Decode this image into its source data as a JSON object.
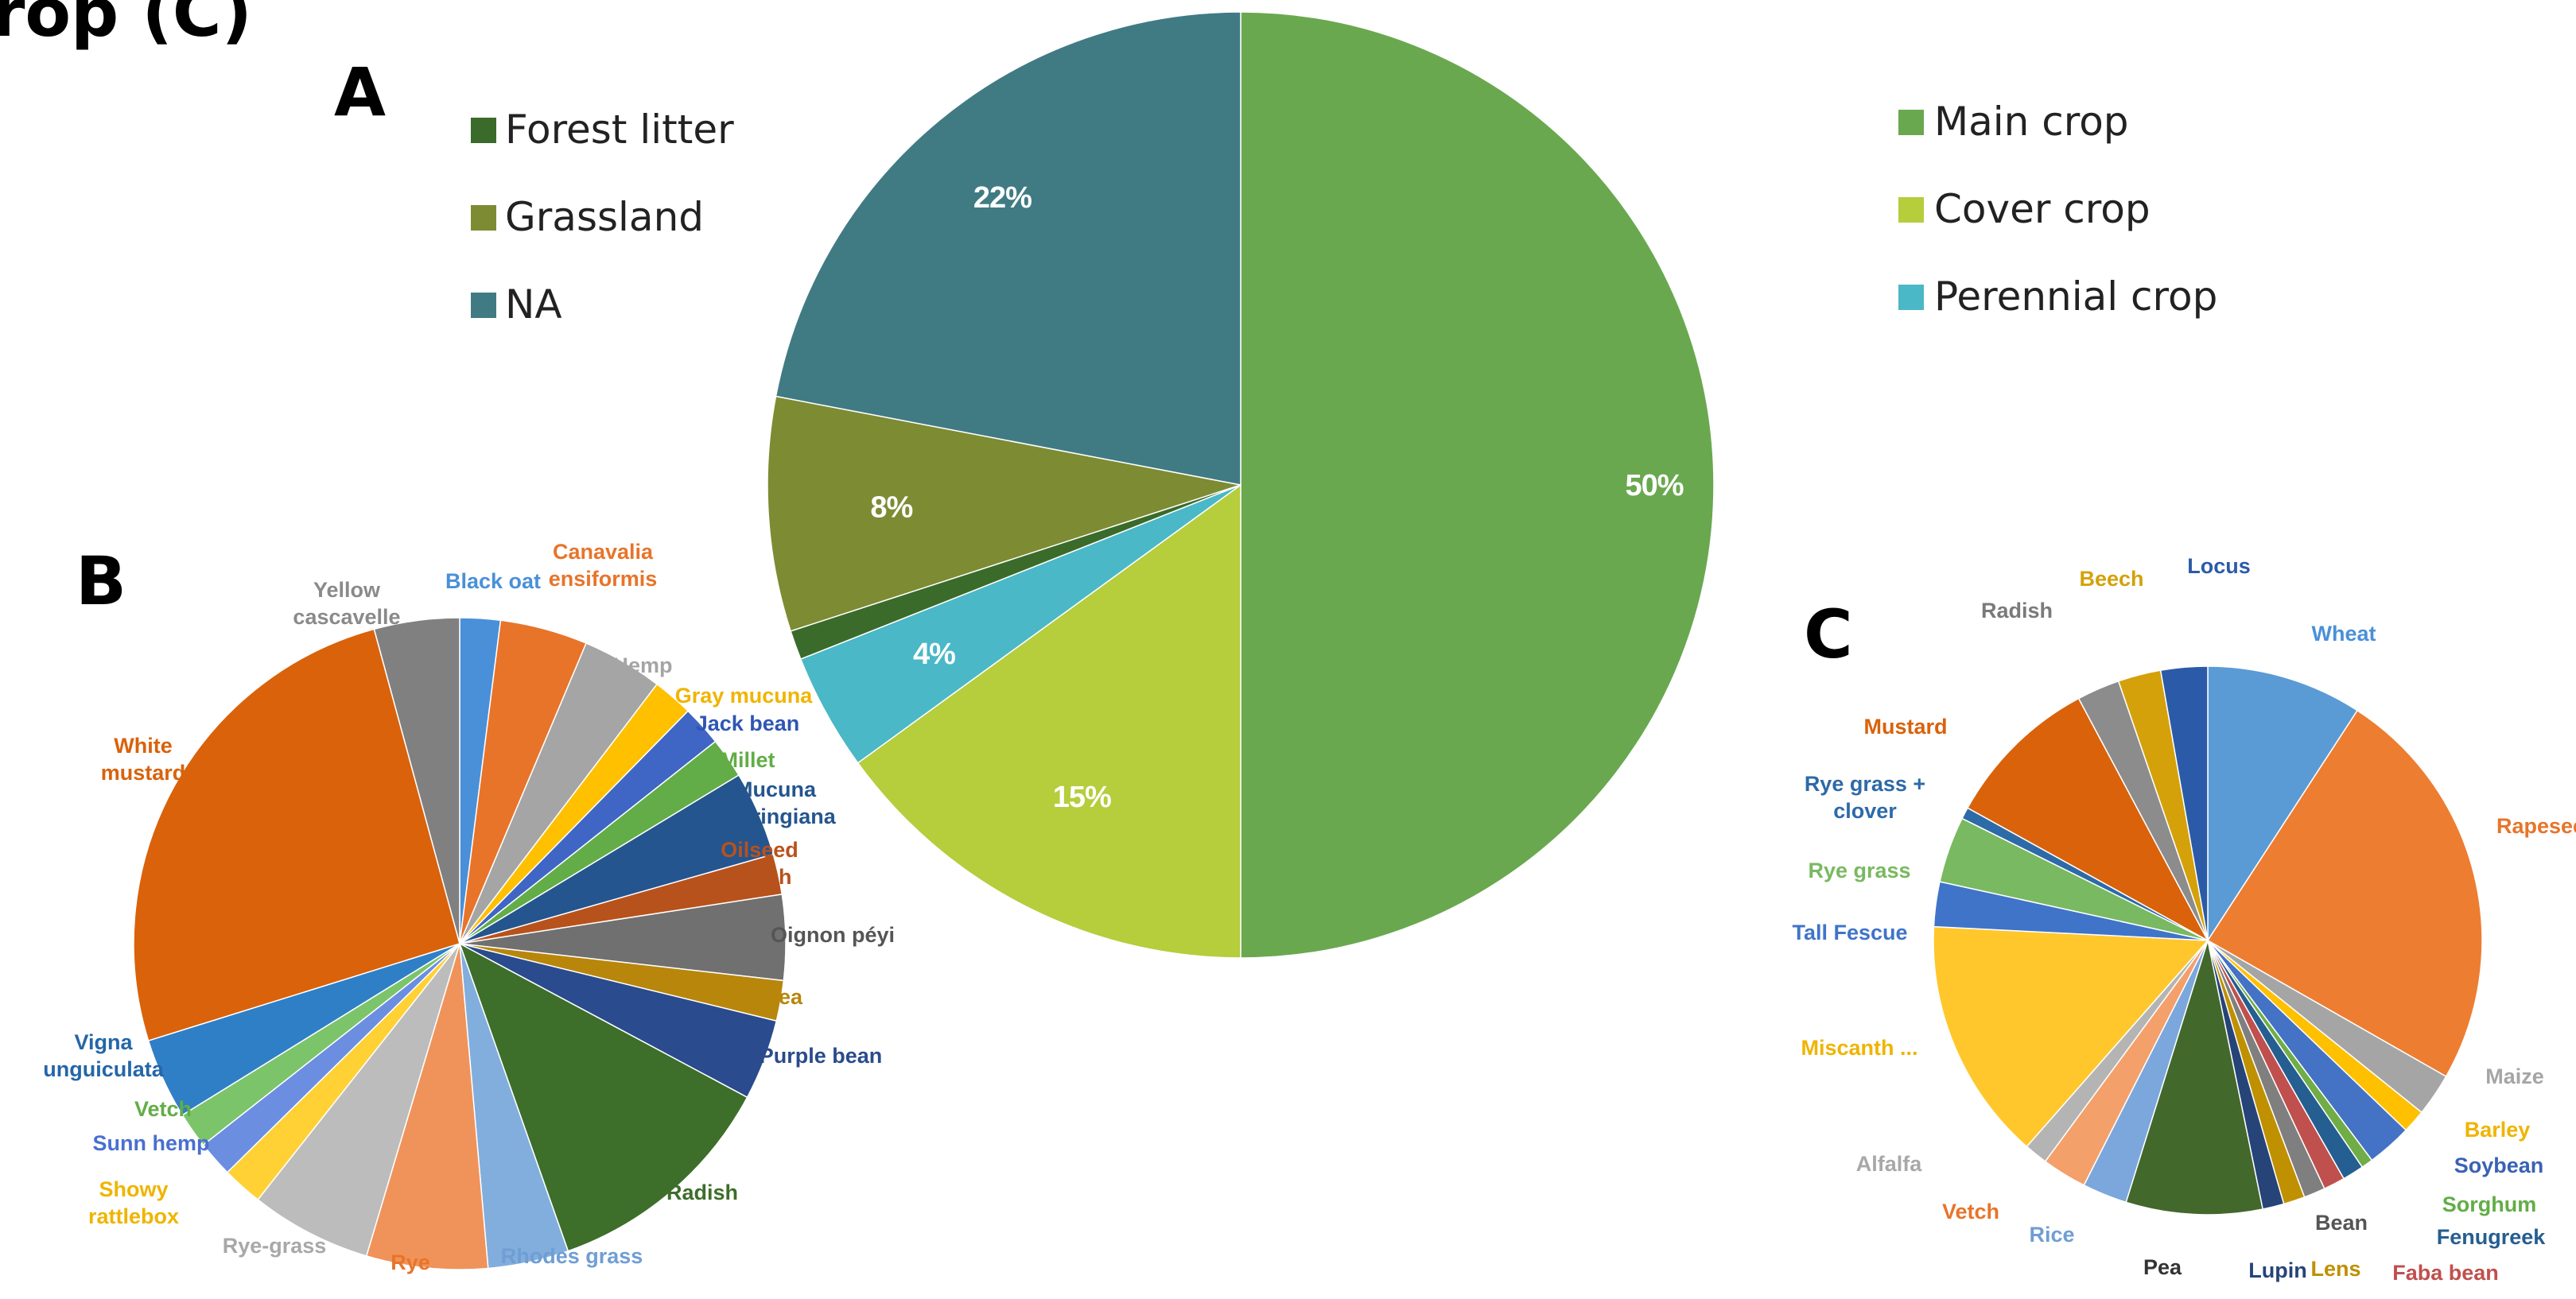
{
  "figure": {
    "title_fragment": "rop (C)"
  },
  "panel_labels": {
    "a": "A",
    "b": "B",
    "c": "C"
  },
  "chart_data": [
    {
      "panel": "A",
      "type": "pie",
      "legend_left": [
        "Forest litter",
        "Grassland",
        "NA"
      ],
      "legend_right": [
        "Main crop",
        "Cover crop",
        "Perennial crop"
      ],
      "slices": [
        {
          "name": "Main crop",
          "value": 50,
          "label": "50%",
          "color": "#6aa84f"
        },
        {
          "name": "Cover crop",
          "value": 15,
          "label": "15%",
          "color": "#b6cd3c"
        },
        {
          "name": "Perennial crop",
          "value": 4,
          "label": "4%",
          "color": "#4ab8c6"
        },
        {
          "name": "Forest litter",
          "value": 1,
          "label": "",
          "color": "#3a6b2a"
        },
        {
          "name": "Grassland",
          "value": 8,
          "label": "8%",
          "color": "#7d8b33"
        },
        {
          "name": "NA",
          "value": 22,
          "label": "22%",
          "color": "#407b84"
        }
      ]
    },
    {
      "panel": "B",
      "type": "pie",
      "slices": [
        {
          "name": "Black oat",
          "value": 1.8,
          "color": "#4a90d9",
          "label_color": "#4a90d9"
        },
        {
          "name": "Canavalia ensiformis",
          "value": 3.9,
          "color": "#e8742a",
          "label_color": "#e8742a"
        },
        {
          "name": "Hemp",
          "value": 3.6,
          "color": "#a5a5a5",
          "label_color": "#a5a5a5"
        },
        {
          "name": "Gray mucuna",
          "value": 1.8,
          "color": "#ffc000",
          "label_color": "#f0b400"
        },
        {
          "name": "Jack bean",
          "value": 1.8,
          "color": "#3f66c4",
          "label_color": "#2f56b4"
        },
        {
          "name": "Millet",
          "value": 1.8,
          "color": "#62ad47",
          "label_color": "#62ad47"
        },
        {
          "name": "Mucuna deeringiana",
          "value": 3.8,
          "color": "#24558f",
          "label_color": "#24558f"
        },
        {
          "name": "Oilseed radish",
          "value": 1.8,
          "color": "#b8521c",
          "label_color": "#b8521c"
        },
        {
          "name": "Oignon péyi",
          "value": 3.8,
          "color": "#707070",
          "label_color": "#555555"
        },
        {
          "name": "Pea",
          "value": 1.8,
          "color": "#b8860b",
          "label_color": "#b8860b"
        },
        {
          "name": "Purple bean",
          "value": 3.6,
          "color": "#2a4b8d",
          "label_color": "#2a4b8d"
        },
        {
          "name": "Radish",
          "value": 10.6,
          "color": "#3d6e2a",
          "label_color": "#3d6e2a"
        },
        {
          "name": "Rhodes grass",
          "value": 3.6,
          "color": "#82aedd",
          "label_color": "#6f9ed4"
        },
        {
          "name": "Rye",
          "value": 5.4,
          "color": "#f0935a",
          "label_color": "#e8742a"
        },
        {
          "name": "Rye-grass",
          "value": 5.4,
          "color": "#bcbcbc",
          "label_color": "#a8a8a8"
        },
        {
          "name": "Showy rattlebox",
          "value": 1.8,
          "color": "#ffd135",
          "label_color": "#f0b400"
        },
        {
          "name": "Sunn hemp",
          "value": 1.6,
          "color": "#6b8ee0",
          "label_color": "#4a6fcf"
        },
        {
          "name": "Vetch",
          "value": 1.6,
          "color": "#7cc46a",
          "label_color": "#62ad47"
        },
        {
          "name": "Vigna unguiculata",
          "value": 3.6,
          "color": "#2f7fc7",
          "label_color": "#2466a8"
        },
        {
          "name": "White mustard",
          "value": 23.0,
          "color": "#d9620b",
          "label_color": "#d9620b"
        },
        {
          "name": "Yellow cascavelle",
          "value": 3.8,
          "color": "#808080",
          "label_color": "#8a8a8a"
        }
      ]
    },
    {
      "panel": "C",
      "type": "pie",
      "slices": [
        {
          "name": "Wheat",
          "value": 8.0,
          "color": "#5b9bd5",
          "label_color": "#4a90d9"
        },
        {
          "name": "Rapeseed",
          "value": 21.0,
          "color": "#ed7d31",
          "label_color": "#e8742a"
        },
        {
          "name": "Maize",
          "value": 2.2,
          "color": "#a5a5a5",
          "label_color": "#a5a5a5"
        },
        {
          "name": "Barley",
          "value": 1.2,
          "color": "#ffc000",
          "label_color": "#f0b400"
        },
        {
          "name": "Soybean",
          "value": 2.3,
          "color": "#4472c4",
          "label_color": "#3a62b4"
        },
        {
          "name": "Sorghum",
          "value": 0.6,
          "color": "#70ad47",
          "label_color": "#62ad47"
        },
        {
          "name": "Fenugreek",
          "value": 1.1,
          "color": "#255e91",
          "label_color": "#255e91"
        },
        {
          "name": "Faba bean",
          "value": 1.1,
          "color": "#c0504d",
          "label_color": "#c0504d"
        },
        {
          "name": "Bean",
          "value": 1.1,
          "color": "#7f7f7f",
          "label_color": "#555555"
        },
        {
          "name": "Lens",
          "value": 1.1,
          "color": "#bf9000",
          "label_color": "#bf9000"
        },
        {
          "name": "Lupin",
          "value": 1.1,
          "color": "#264478",
          "label_color": "#264478"
        },
        {
          "name": "Pea",
          "value": 7.0,
          "color": "#43682b",
          "label_color": "#333333"
        },
        {
          "name": "Rice",
          "value": 2.3,
          "color": "#7ba7dc",
          "label_color": "#6f9ed4"
        },
        {
          "name": "Vetch",
          "value": 2.3,
          "color": "#f4a06a",
          "label_color": "#e8742a"
        },
        {
          "name": "Alfalfa",
          "value": 1.2,
          "color": "#b4b4b4",
          "label_color": "#a8a8a8"
        },
        {
          "name": "Miscanth ...",
          "value": 12.5,
          "color": "#ffc72c",
          "label_color": "#f0b400"
        },
        {
          "name": "Tall Fescue",
          "value": 2.3,
          "color": "#3f74c9",
          "label_color": "#3f74c9"
        },
        {
          "name": "Rye grass",
          "value": 3.4,
          "color": "#79b961",
          "label_color": "#79b961"
        },
        {
          "name": "Rye grass + clover",
          "value": 0.6,
          "color": "#2d6aa8",
          "label_color": "#2d6aa8"
        },
        {
          "name": "Mustard",
          "value": 8.0,
          "color": "#d9620b",
          "label_color": "#d9620b"
        },
        {
          "name": "Radish",
          "value": 2.2,
          "color": "#8c8c8c",
          "label_color": "#7a7a7a"
        },
        {
          "name": "Beech",
          "value": 2.2,
          "color": "#d4a10a",
          "label_color": "#d4a10a"
        },
        {
          "name": "Locus",
          "value": 2.4,
          "color": "#2b5ba8",
          "label_color": "#2b5ba8"
        }
      ]
    }
  ]
}
